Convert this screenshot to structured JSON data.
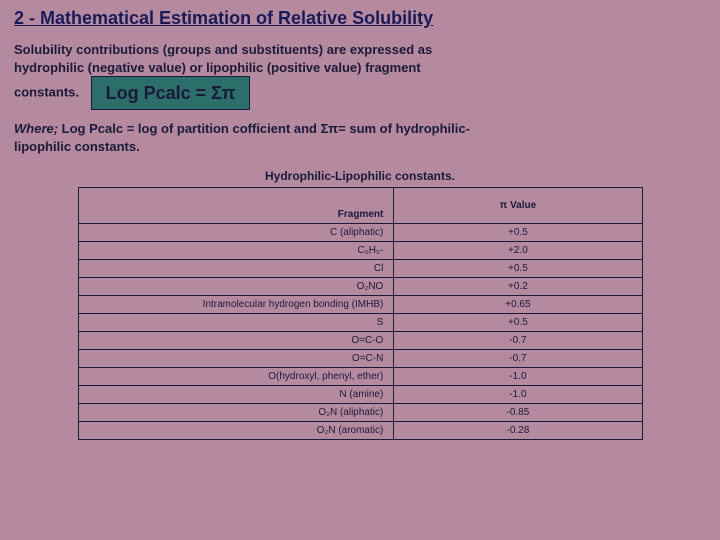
{
  "title": "2 - Mathematical Estimation of Relative Solubility",
  "intro_line1": "Solubility contributions (groups and substituents) are expressed as",
  "intro_line2": "hydrophilic (negative value) or lipophilic (positive value) fragment",
  "intro_line3_pre": "constants.",
  "formula": "Log Pcalc  =  Σπ",
  "where_prefix": "Where;",
  "where_body1": " Log Pcalc = log of partition cofficient and Σπ= sum of hydrophilic-",
  "where_body2": "lipophilic constants.",
  "table_caption": "Hydrophilic-Lipophilic constants.",
  "header_fragment": "Fragment",
  "header_value": "π Value",
  "rows": [
    {
      "fragment": "C (aliphatic)",
      "value": "+0.5"
    },
    {
      "fragment": "C₆H₅-",
      "value": "+2.0"
    },
    {
      "fragment": "Cl",
      "value": "+0.5"
    },
    {
      "fragment": "O₂NO",
      "value": "+0.2"
    },
    {
      "fragment": "Intramolecular hydrogen bonding (IMHB)",
      "value": "+0.65"
    },
    {
      "fragment": "S",
      "value": "+0.5"
    },
    {
      "fragment": "O=C-O",
      "value": "-0.7"
    },
    {
      "fragment": "O=C-N",
      "value": "-0.7"
    },
    {
      "fragment": "O(hydroxyl, phenyl, ether)",
      "value": "-1.0"
    },
    {
      "fragment": "N (amine)",
      "value": "-1.0"
    },
    {
      "fragment": "O₂N (aliphatic)",
      "value": "-0.85"
    },
    {
      "fragment": "O₂N (aromatic)",
      "value": "-0.28"
    }
  ],
  "colors": {
    "background": "#b58a9e",
    "text": "#1a1a3a",
    "title": "#1a1a5a",
    "formula_bg": "#2b6e6a",
    "border": "#1a1a3a"
  }
}
